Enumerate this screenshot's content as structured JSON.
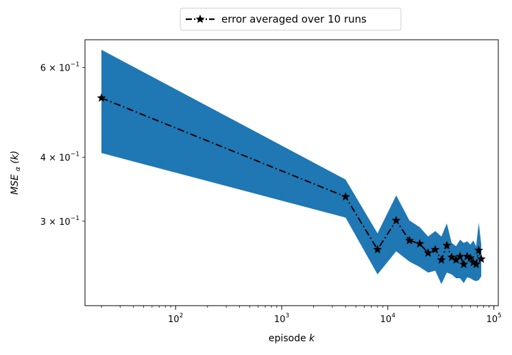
{
  "chart_data": {
    "type": "line",
    "title": "",
    "xlabel": "episode",
    "xlabel_var": "k",
    "ylabel": "MSE",
    "ylabel_sub": "α",
    "ylabel_arg": "(k)",
    "x_scale": "log",
    "y_scale": "log",
    "xlim": [
      14,
      110000
    ],
    "ylim": [
      0.205,
      0.68
    ],
    "x_ticks": [
      {
        "value": 100,
        "base": "10",
        "exp": "2"
      },
      {
        "value": 1000,
        "base": "10",
        "exp": "3"
      },
      {
        "value": 10000,
        "base": "10",
        "exp": "4"
      },
      {
        "value": 100000,
        "base": "10",
        "exp": "5"
      }
    ],
    "y_ticks": [
      {
        "value": 0.3,
        "mant": "3",
        "base": "10",
        "exp": "−1"
      },
      {
        "value": 0.4,
        "mant": "4",
        "base": "10",
        "exp": "−1"
      },
      {
        "value": 0.6,
        "mant": "6",
        "base": "10",
        "exp": "−1"
      }
    ],
    "grid": false,
    "legend": {
      "position": "top-center",
      "entries": [
        "error averaged over 10 runs"
      ]
    },
    "series": [
      {
        "name": "error averaged over 10 runs",
        "color": "#000000",
        "line_style": "dashdot",
        "marker": "star",
        "x": [
          20,
          4000,
          8000,
          12000,
          16000,
          20000,
          24000,
          28000,
          32000,
          36000,
          40000,
          44000,
          48000,
          52000,
          56000,
          60000,
          64000,
          68000,
          72000,
          76000
        ],
        "y": [
          0.523,
          0.335,
          0.264,
          0.301,
          0.275,
          0.271,
          0.26,
          0.264,
          0.252,
          0.269,
          0.255,
          0.252,
          0.256,
          0.247,
          0.256,
          0.254,
          0.249,
          0.247,
          0.263,
          0.253
        ]
      }
    ],
    "band": {
      "color": "#1f77b4",
      "x": [
        20,
        4000,
        8000,
        12000,
        16000,
        20000,
        24000,
        28000,
        32000,
        36000,
        40000,
        44000,
        48000,
        52000,
        56000,
        60000,
        64000,
        68000,
        72000,
        76000
      ],
      "upper": [
        0.65,
        0.362,
        0.284,
        0.337,
        0.301,
        0.292,
        0.28,
        0.287,
        0.28,
        0.297,
        0.272,
        0.268,
        0.276,
        0.272,
        0.274,
        0.27,
        0.275,
        0.268,
        0.298,
        0.27
      ],
      "lower": [
        0.408,
        0.305,
        0.236,
        0.262,
        0.25,
        0.244,
        0.238,
        0.24,
        0.226,
        0.238,
        0.236,
        0.232,
        0.232,
        0.227,
        0.233,
        0.232,
        0.23,
        0.229,
        0.23,
        0.234
      ]
    }
  }
}
